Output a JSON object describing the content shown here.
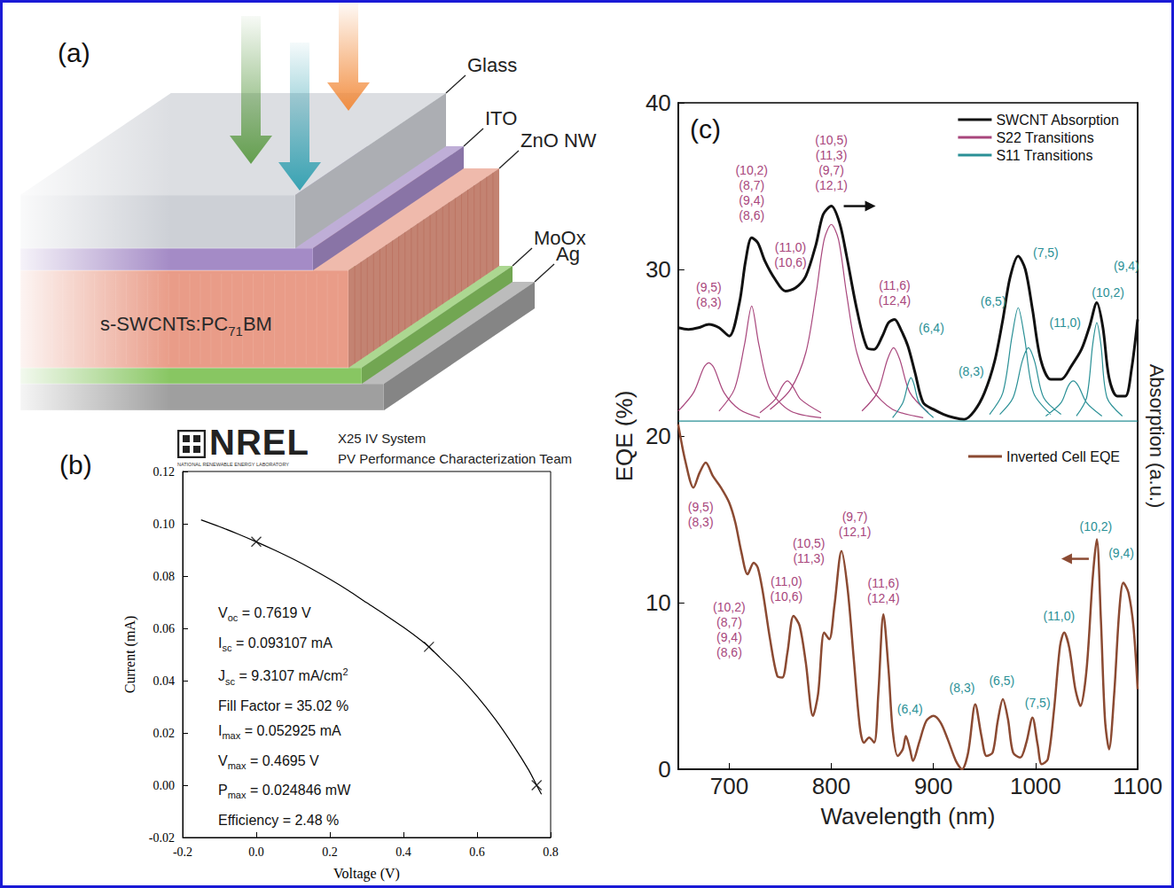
{
  "diagram": {
    "panel": "(a)",
    "layers": [
      {
        "label": "Glass",
        "color": "#cdd0d6"
      },
      {
        "label": "ITO",
        "color": "#a48bc6"
      },
      {
        "label": "ZnO NW",
        "color": "#e99c88",
        "front_label": [
          {
            "text": "s-SWCNTs:PC"
          },
          {
            "text": "71",
            "sub": true
          },
          {
            "text": "BM"
          }
        ]
      },
      {
        "label": "MoOx",
        "color": "#88c662"
      },
      {
        "label": "Ag",
        "color": "#9f9f9f"
      }
    ]
  },
  "logo": {
    "name": "NREL",
    "subtitle": "NATIONAL RENEWABLE ENERGY LABORATORY",
    "lines": [
      "X25 IV System",
      "PV Performance Characterization Team"
    ]
  },
  "chart_data": [
    {
      "panel": "(b)",
      "type": "line",
      "xlabel": "Voltage (V)",
      "ylabel": "Current (mA)",
      "xlim": [
        -0.2,
        0.8
      ],
      "xticks": [
        -0.2,
        {
          "value": 0,
          "label": "0.0"
        },
        0.2,
        0.4,
        0.6,
        0.8
      ],
      "ylim": [
        -0.02,
        0.12
      ],
      "yticks": [
        -0.02,
        {
          "value": 0,
          "label": "0.00"
        },
        0.02,
        0.04,
        0.06,
        0.08,
        {
          "value": 0.1,
          "label": "0.10"
        },
        0.12
      ],
      "grid": false,
      "series": [
        {
          "type": "line",
          "color": "#000000",
          "x": [
            -0.15,
            -0.1,
            -0.05,
            0,
            0.05,
            0.1,
            0.15,
            0.2,
            0.25,
            0.3,
            0.35,
            0.4,
            0.45,
            0.4695,
            0.5,
            0.55,
            0.6,
            0.65,
            0.7,
            0.74,
            0.7619,
            0.775
          ],
          "values": [
            0.1015,
            0.0989,
            0.0961,
            0.0931,
            0.0899,
            0.0865,
            0.0828,
            0.0788,
            0.0745,
            0.0698,
            0.0652,
            0.0604,
            0.0552,
            0.0529,
            0.0487,
            0.0418,
            0.034,
            0.0251,
            0.0149,
            0.0059,
            0,
            -0.0035
          ]
        },
        {
          "type": "scatter",
          "marker": "x",
          "color": "#000000",
          "x": [
            0,
            0.4695,
            0.7619
          ],
          "values": [
            0.093107,
            0.052925,
            0
          ]
        }
      ],
      "annotations": [
        {
          "text": "V",
          "sub": "oc",
          "rest": " = 0.7619 V"
        },
        {
          "text": "I",
          "sub": "sc",
          "rest": " = 0.093107 mA"
        },
        {
          "text": "J",
          "sub": "sc",
          "rest": " = 9.3107 mA/cm",
          "sup": "2"
        },
        {
          "text": "Fill Factor = 35.02 %"
        },
        {
          "text": "I",
          "sub": "max",
          "rest": " = 0.052925 mA"
        },
        {
          "text": "V",
          "sub": "max",
          "rest": " = 0.4695 V"
        },
        {
          "text": "P",
          "sub": "max",
          "rest": " = 0.024846 mW"
        },
        {
          "text": "Efficiency = 2.48 %"
        }
      ]
    },
    {
      "panel": "(c)",
      "type": "line",
      "xlabel": "Wavelength (nm)",
      "ylabel": "EQE (%)",
      "y2label": "Absorption (a.u.)",
      "xlim": [
        650,
        1100
      ],
      "xticks": [
        700,
        800,
        900,
        1000,
        1100
      ],
      "ylim": [
        0,
        40
      ],
      "yticks": [
        0,
        10,
        20,
        30,
        40
      ],
      "y2lim": [
        0,
        40
      ],
      "y2ticks": [],
      "grid": false,
      "legend": "upper right",
      "series": [
        {
          "name": "SWCNT Absorption",
          "color": "#111111",
          "axis": "y2",
          "x": [
            650,
            660,
            670,
            680,
            690,
            700,
            710,
            716,
            722,
            728,
            735,
            745,
            755,
            765,
            775,
            785,
            792,
            800,
            808,
            815,
            825,
            835,
            842,
            850,
            856,
            862,
            868,
            875,
            882,
            890,
            900,
            910,
            920,
            930,
            940,
            950,
            960,
            968,
            975,
            983,
            990,
            997,
            1005,
            1015,
            1025,
            1035,
            1045,
            1053,
            1060,
            1066,
            1072,
            1080,
            1088,
            1094,
            1100
          ],
          "values": [
            26.5,
            26.4,
            26.5,
            26.7,
            26.5,
            26.0,
            28.0,
            30.5,
            31.9,
            31.6,
            30.5,
            29.4,
            28.7,
            28.9,
            29.6,
            31.5,
            33.3,
            33.8,
            32.8,
            30.8,
            27.6,
            25.3,
            25.2,
            26.0,
            26.8,
            27.0,
            26.4,
            25.4,
            23.8,
            22.0,
            21.6,
            21.3,
            21.1,
            21.0,
            21.5,
            22.6,
            24.5,
            27.0,
            29.5,
            30.8,
            30.0,
            27.6,
            24.6,
            23.4,
            23.4,
            24.2,
            25.2,
            26.6,
            28.0,
            26.5,
            23.5,
            22.4,
            22.4,
            24.0,
            27.0
          ]
        },
        {
          "name": "S22 Transitions",
          "color": "#a8467c",
          "axis": "y2",
          "x": [
            650,
            665,
            675,
            680,
            685,
            695,
            710,
            730,
            null,
            690,
            705,
            715,
            722,
            729,
            740,
            760,
            790,
            null,
            730,
            745,
            752,
            757,
            762,
            770,
            790,
            null,
            740,
            760,
            775,
            785,
            793,
            800,
            807,
            815,
            825,
            840,
            860,
            890,
            null,
            830,
            845,
            855,
            861,
            867,
            877,
            895
          ],
          "values": [
            21.5,
            22.6,
            24.1,
            24.4,
            24.1,
            22.6,
            21.6,
            21.1,
            null,
            21.5,
            22.8,
            25.5,
            27.8,
            25.5,
            22.8,
            21.5,
            21.1,
            null,
            21.4,
            22.2,
            23.0,
            23.3,
            23.0,
            22.2,
            21.4,
            null,
            21.6,
            22.8,
            25.0,
            28.5,
            31.8,
            32.7,
            31.8,
            28.5,
            25.0,
            22.8,
            21.6,
            21.1,
            null,
            21.5,
            22.6,
            24.6,
            25.3,
            24.6,
            22.6,
            21.4
          ]
        },
        {
          "name": "S11 Transitions",
          "color": "#2a9096",
          "axis": "y2",
          "x": [
            650,
            1100,
            null,
            860,
            870,
            875,
            878,
            881,
            886,
            900,
            null,
            955,
            968,
            977,
            983,
            989,
            998,
            1015,
            null,
            965,
            978,
            987,
            993,
            999,
            1008,
            1025,
            null,
            1010,
            1025,
            1032,
            1037,
            1042,
            1050,
            1065,
            null,
            1040,
            1050,
            1056,
            1060,
            1064,
            1070,
            1085
          ],
          "values": [
            20.9,
            20.9,
            null,
            21.1,
            22.0,
            23.1,
            23.5,
            23.1,
            22.0,
            21.1,
            null,
            21.3,
            22.6,
            26.0,
            27.7,
            26.0,
            22.6,
            21.3,
            null,
            21.3,
            22.3,
            24.5,
            25.3,
            24.5,
            22.3,
            21.3,
            null,
            21.2,
            22.0,
            23.0,
            23.3,
            23.0,
            22.0,
            21.2,
            null,
            21.2,
            22.3,
            25.5,
            26.8,
            25.5,
            22.3,
            21.2
          ]
        },
        {
          "name": "Inverted Cell EQE",
          "color": "#8b4a32",
          "axis": "y",
          "x": [
            650,
            657,
            665,
            671,
            677,
            684,
            692,
            700,
            706,
            712,
            718,
            724,
            728,
            733,
            740,
            747,
            752,
            757,
            763,
            769,
            775,
            782,
            787,
            793,
            798,
            803,
            810,
            816,
            822,
            828,
            832,
            837,
            842,
            846,
            851,
            856,
            860,
            865,
            870,
            873,
            877,
            880,
            886,
            893,
            900,
            907,
            914,
            922,
            928,
            934,
            941,
            947,
            952,
            958,
            963,
            968,
            973,
            978,
            985,
            991,
            997,
            1002,
            1006,
            1012,
            1018,
            1024,
            1028,
            1033,
            1039,
            1044,
            1050,
            1056,
            1060,
            1064,
            1068,
            1072,
            1077,
            1082,
            1086,
            1091,
            1096,
            1100
          ],
          "values": [
            20.7,
            18.5,
            16.9,
            17.8,
            18.4,
            17.6,
            16.9,
            16.0,
            14.8,
            13.0,
            11.7,
            12.4,
            12.1,
            10.6,
            7.8,
            5.6,
            5.5,
            7.0,
            9.2,
            8.6,
            6.4,
            3.2,
            4.5,
            8.2,
            7.8,
            9.8,
            13.1,
            10.8,
            6.6,
            2.5,
            1.6,
            1.9,
            1.6,
            4.5,
            9.3,
            6.0,
            2.4,
            0.8,
            1.2,
            2.0,
            1.2,
            0.5,
            1.6,
            2.9,
            3.2,
            2.8,
            1.8,
            0.5,
            0.0,
            1.0,
            3.9,
            2.0,
            0.8,
            1.0,
            2.9,
            4.2,
            3.0,
            1.0,
            0.7,
            1.6,
            3.1,
            1.5,
            0.3,
            0.6,
            3.5,
            7.4,
            8.2,
            7.3,
            4.8,
            3.8,
            6.0,
            11.5,
            13.8,
            9.0,
            3.0,
            1.2,
            4.5,
            9.5,
            11.2,
            10.6,
            8.5,
            4.8
          ]
        }
      ],
      "annotations": [
        {
          "text": [
            "(9,5)",
            "(8,3)"
          ],
          "x": 680,
          "y": 28.5,
          "color": "#a8467c"
        },
        {
          "text": [
            "(10,2)",
            "(8,7)",
            "(9,4)",
            "(8,6)"
          ],
          "x": 722,
          "y": 34.6,
          "color": "#a8467c"
        },
        {
          "text": [
            "(11,0)",
            "(10,6)"
          ],
          "x": 760,
          "y": 30.9,
          "color": "#a8467c"
        },
        {
          "text": [
            "(10,5)",
            "(11,3)",
            "(9,7)",
            "(12,1)"
          ],
          "x": 800,
          "y": 36.4,
          "color": "#a8467c"
        },
        {
          "text": [
            "(11,6)",
            "(12,4)"
          ],
          "x": 862,
          "y": 28.6,
          "color": "#a8467c"
        },
        {
          "text": [
            "(6,4)"
          ],
          "x": 898,
          "y": 26.5,
          "color": "#2a9096"
        },
        {
          "text": [
            "(8,3)"
          ],
          "x": 937,
          "y": 23.9,
          "color": "#2a9096"
        },
        {
          "text": [
            "(6,5)"
          ],
          "x": 958.6,
          "y": 28.1,
          "color": "#2a9096"
        },
        {
          "text": [
            "(7,5)"
          ],
          "x": 1010,
          "y": 31.0,
          "color": "#2a9096"
        },
        {
          "text": [
            "(11,0)"
          ],
          "x": 1029,
          "y": 26.8,
          "color": "#2a9096"
        },
        {
          "text": [
            "(10,2)"
          ],
          "x": 1071,
          "y": 28.6,
          "color": "#2a9096"
        },
        {
          "text": [
            "(9,4)"
          ],
          "x": 1089,
          "y": 30.2,
          "color": "#2a9096"
        },
        {
          "text": [
            "(9,5)",
            "(8,3)"
          ],
          "x": 672,
          "y": 15.3,
          "color": "#a8467c"
        },
        {
          "text": [
            "(10,2)",
            "(8,7)",
            "(9,4)",
            "(8,6)"
          ],
          "x": 700,
          "y": 8.4,
          "color": "#a8467c"
        },
        {
          "text": [
            "(11,0)",
            "(10,6)"
          ],
          "x": 756,
          "y": 10.8,
          "color": "#a8467c"
        },
        {
          "text": [
            "(10,5)",
            "(11,3)"
          ],
          "x": 778,
          "y": 13.1,
          "color": "#a8467c"
        },
        {
          "text": [
            "(9,7)",
            "(12,1)"
          ],
          "x": 823,
          "y": 14.7,
          "color": "#a8467c"
        },
        {
          "text": [
            "(11,6)",
            "(12,4)"
          ],
          "x": 851,
          "y": 10.7,
          "color": "#a8467c"
        },
        {
          "text": [
            "(6,4)"
          ],
          "x": 877,
          "y": 3.6,
          "color": "#2a9096"
        },
        {
          "text": [
            "(8,3)"
          ],
          "x": 928,
          "y": 4.9,
          "color": "#2a9096"
        },
        {
          "text": [
            "(6,5)"
          ],
          "x": 967,
          "y": 5.3,
          "color": "#2a9096"
        },
        {
          "text": [
            "(7,5)"
          ],
          "x": 1002,
          "y": 4.0,
          "color": "#2a9096"
        },
        {
          "text": [
            "(11,0)"
          ],
          "x": 1023,
          "y": 9.2,
          "color": "#2a9096"
        },
        {
          "text": [
            "(10,2)"
          ],
          "x": 1059,
          "y": 14.6,
          "color": "#2a9096"
        },
        {
          "text": [
            "(9,4)"
          ],
          "x": 1084,
          "y": 13.0,
          "color": "#2a9096"
        }
      ]
    }
  ]
}
